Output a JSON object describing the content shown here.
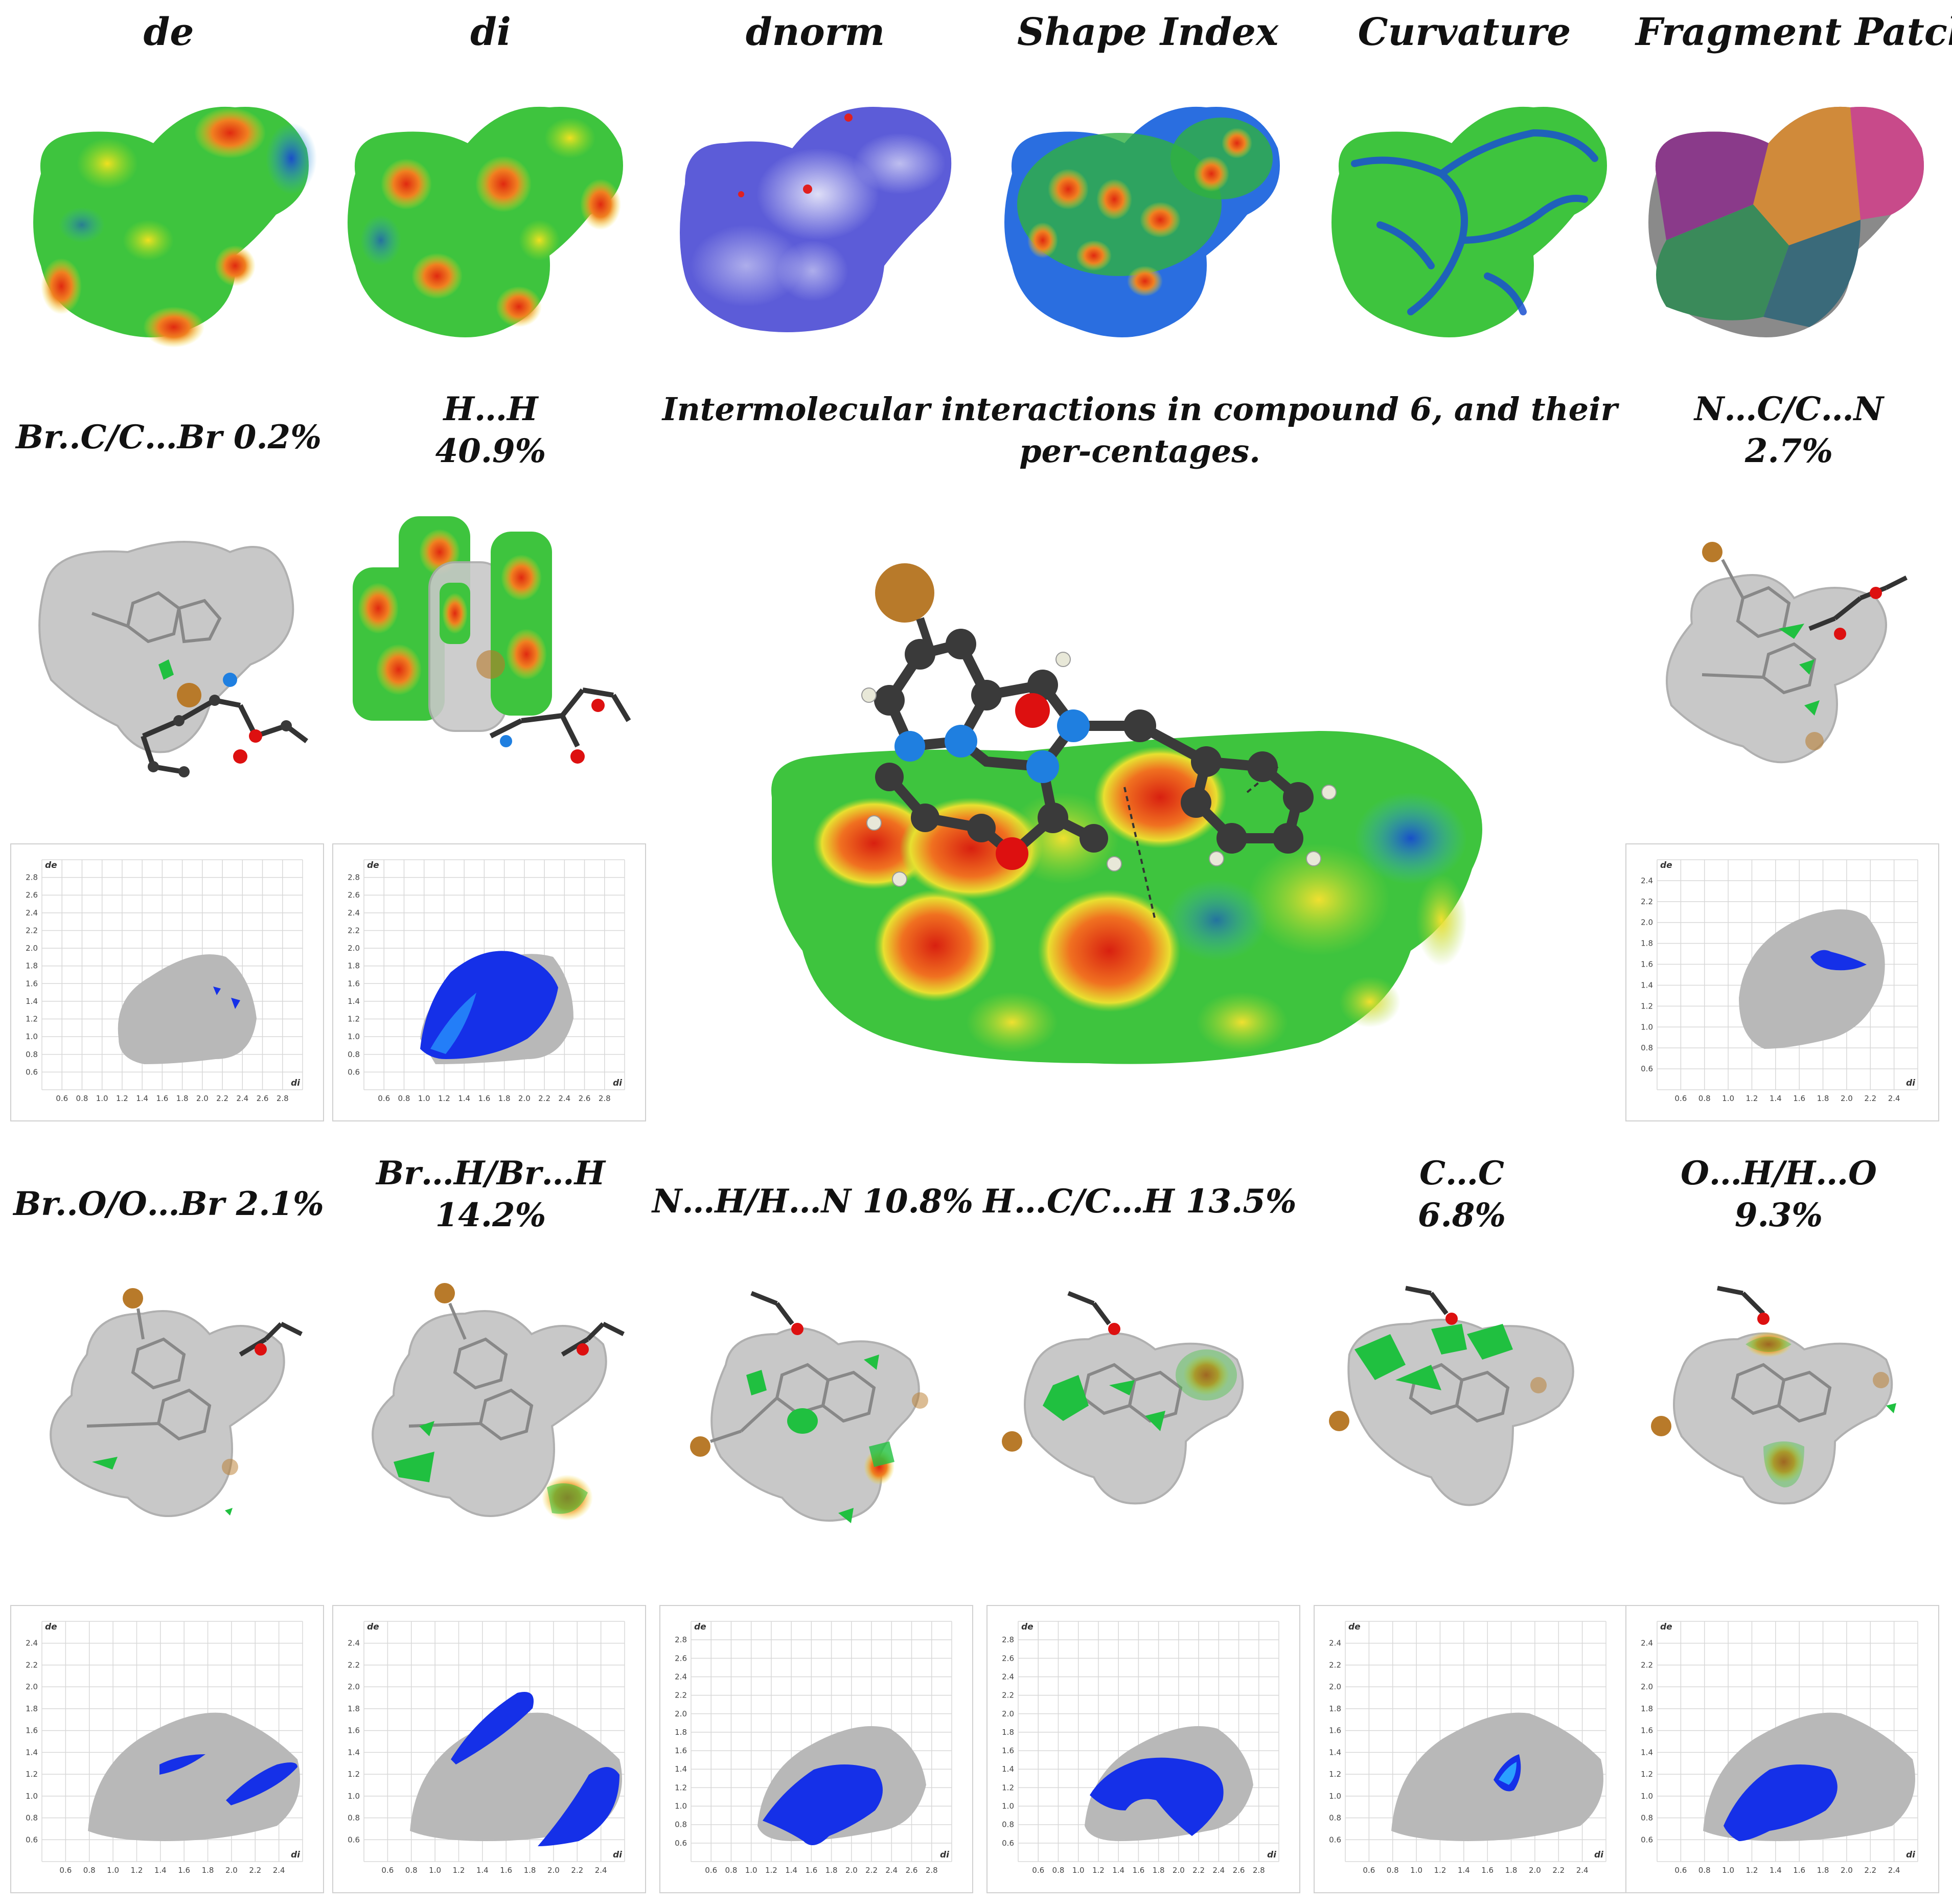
{
  "surface_titles": [
    "de",
    "di",
    "dnorm",
    "Shape Index",
    "Curvature",
    "Fragment Patch"
  ],
  "center_title": "Intermolecular interactions in compound 6, and their per-centages.",
  "interactions": {
    "br_c": {
      "line1": "Br..C/C…Br 0.2%",
      "line2": ""
    },
    "h_h": {
      "line1": "H…H",
      "line2": "40.9%"
    },
    "n_c": {
      "line1": "N…C/C…N",
      "line2": "2.7%"
    },
    "br_o": {
      "line1": "Br..O/O…Br 2.1%",
      "line2": ""
    },
    "br_h": {
      "line1": "Br…H/Br…H",
      "line2": "14.2%"
    },
    "n_h": {
      "line1": "N…H/H…N 10.8%",
      "line2": ""
    },
    "h_c": {
      "line1": "H…C/C…H 13.5%",
      "line2": ""
    },
    "c_c": {
      "line1": "C…C",
      "line2": "6.8%"
    },
    "o_h": {
      "line1": "O…H/H…O",
      "line2": "9.3%"
    }
  },
  "fingerprint": {
    "x_axis_name": "di",
    "y_axis_name": "de",
    "ticks_short": [
      "0.6",
      "0.8",
      "1.0",
      "1.2",
      "1.4",
      "1.6",
      "1.8",
      "2.0",
      "2.2",
      "2.4"
    ],
    "ticks_long": [
      "0.6",
      "0.8",
      "1.0",
      "1.2",
      "1.4",
      "1.6",
      "1.8",
      "2.0",
      "2.2",
      "2.4",
      "2.6",
      "2.8"
    ]
  },
  "colors": {
    "surface_green": "#33cc33",
    "surface_red": "#e02a10",
    "surface_blue": "#1a5ec8",
    "fingerprint_gray": "#b8b8b8",
    "fingerprint_blue": "#1530e8",
    "bromine": "#b87a2a",
    "carbon": "#3a3a3a",
    "nitrogen": "#1f7fe0",
    "oxygen": "#dd1010"
  }
}
